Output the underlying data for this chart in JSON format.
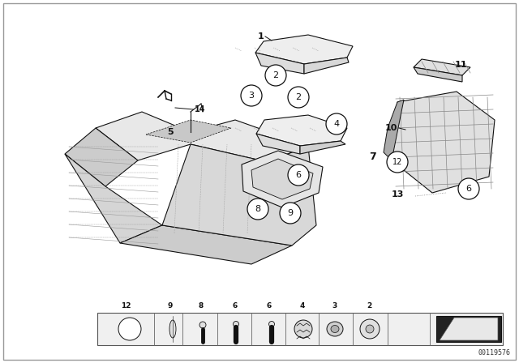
{
  "bg_color": "#ffffff",
  "border_color": "#aaaaaa",
  "diagram_id": "00119576",
  "line_color": "#111111",
  "circle_fill": "#ffffff",
  "circle_edge": "#111111",
  "part_fill": "#f5f5f5",
  "part_fill2": "#e0e0e0",
  "part_fill3": "#cccccc"
}
